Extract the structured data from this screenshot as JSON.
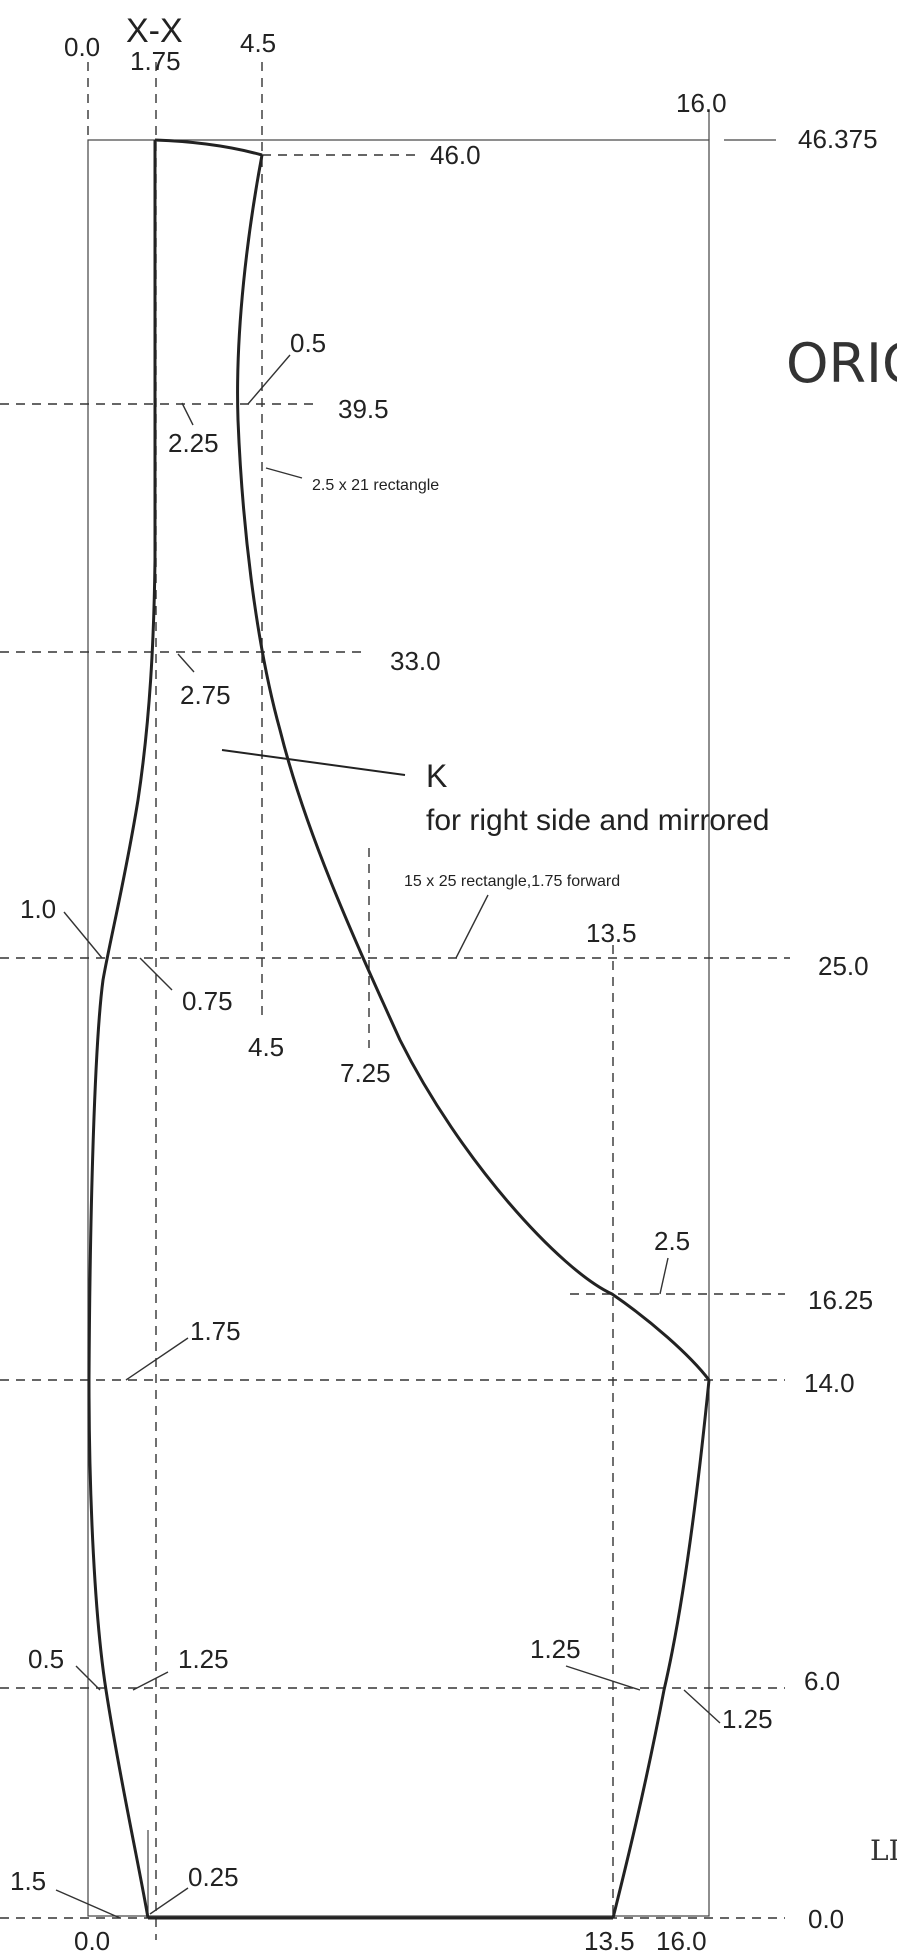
{
  "drawing": {
    "section_label": "X-X",
    "title_fragment": "ORIG",
    "bottom_right_fragment": "LI",
    "pointer_letter": "K",
    "pointer_note": "for right side and mirrored",
    "note_upper_rectangle": "2.5 x 21 rectangle",
    "note_lower_rectangle": "15 x 25 rectangle,1.75 forward"
  },
  "dimensions": {
    "top_x_0_0": "0.0",
    "top_x_1_75": "1.75",
    "top_x_4_5": "4.5",
    "top_x_16_0": "16.0",
    "y_46_375": "46.375",
    "y_46_0": "46.0",
    "y_39_5": "39.5",
    "y_33_0": "33.0",
    "y_25_0": "25.0",
    "y_16_25": "16.25",
    "y_14_0": "14.0",
    "y_6_0": "6.0",
    "y_0_0": "0.0",
    "offset_0_5_top": "0.5",
    "offset_2_25": "2.25",
    "offset_2_75": "2.75",
    "offset_1_0": "1.0",
    "offset_0_75": "0.75",
    "mark_13_5_upper": "13.5",
    "mark_4_5_lower": "4.5",
    "mark_7_25": "7.25",
    "offset_2_5": "2.5",
    "offset_1_75": "1.75",
    "offset_0_5_bottom": "0.5",
    "offset_1_25_left": "1.25",
    "offset_1_25_right_top": "1.25",
    "offset_1_25_right_bottom": "1.25",
    "offset_1_5": "1.5",
    "offset_0_25": "0.25",
    "bottom_x_0_0": "0.0",
    "bottom_x_13_5": "13.5",
    "bottom_x_16_0": "16.0"
  }
}
